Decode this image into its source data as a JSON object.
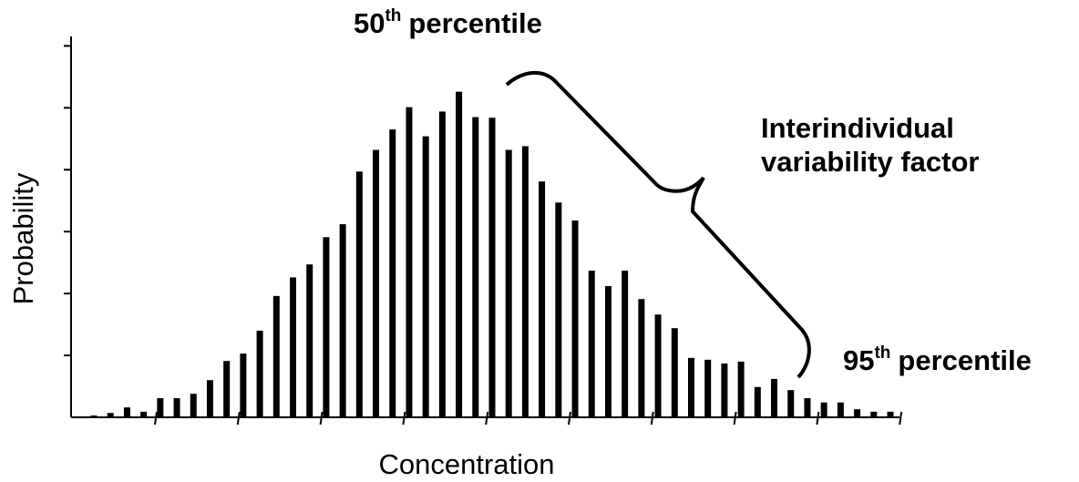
{
  "chart_data": {
    "type": "bar",
    "x_label": "Concentration",
    "y_label": "Probability",
    "annotations": [
      {
        "number": "50",
        "ordinal": "th",
        "text": "percentile"
      },
      {
        "lines": [
          "Interindividual",
          "variability factor"
        ]
      },
      {
        "number": "95",
        "ordinal": "th",
        "text": "percentile"
      }
    ],
    "categories": [
      null,
      null,
      null,
      null,
      null,
      null,
      null,
      null,
      null,
      null,
      null,
      null,
      null,
      null,
      null,
      null,
      null,
      null,
      null,
      null,
      null,
      null,
      null,
      null,
      null,
      null,
      null,
      null,
      null,
      null,
      null,
      null,
      null,
      null,
      null,
      null,
      null,
      null,
      null,
      null,
      null,
      null,
      null,
      null,
      null,
      null,
      null,
      null,
      null
    ],
    "values": [
      0.03,
      0.07,
      0.16,
      0.09,
      0.31,
      0.31,
      0.38,
      0.6,
      0.91,
      1.03,
      1.4,
      1.96,
      2.26,
      2.47,
      2.91,
      3.12,
      3.97,
      4.32,
      4.65,
      5.01,
      4.54,
      4.94,
      5.26,
      4.85,
      4.84,
      4.32,
      4.38,
      3.81,
      3.47,
      3.18,
      2.37,
      2.12,
      2.37,
      1.91,
      1.66,
      1.44,
      0.96,
      0.93,
      0.87,
      0.9,
      0.49,
      0.62,
      0.44,
      0.31,
      0.24,
      0.24,
      0.13,
      0.09,
      0.09
    ],
    "color": "#000000",
    "ylim": [
      0,
      6.05
    ],
    "yticks": [
      1,
      2,
      3,
      4,
      5,
      6
    ],
    "grid": false
  }
}
